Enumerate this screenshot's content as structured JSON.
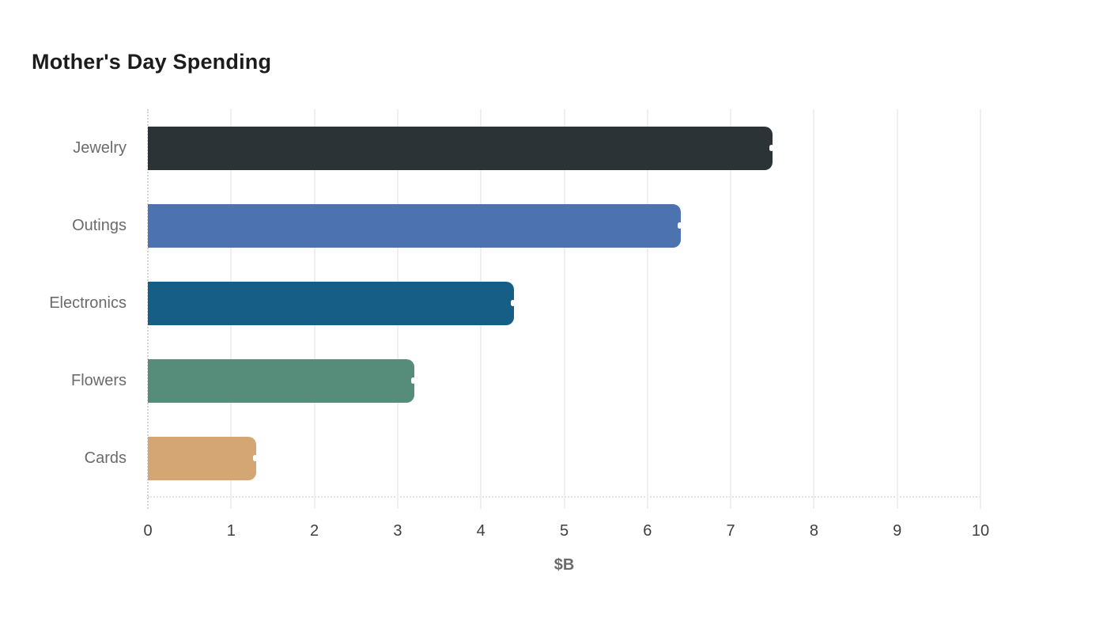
{
  "chart_data": {
    "type": "bar",
    "orientation": "horizontal",
    "title": "Mother's Day Spending",
    "categories": [
      "Jewelry",
      "Outings",
      "Electronics",
      "Flowers",
      "Cards"
    ],
    "values": [
      7.5,
      6.4,
      4.4,
      3.2,
      1.3
    ],
    "bar_colors": [
      "#2b3337",
      "#4c72b0",
      "#165e86",
      "#558c7a",
      "#d3a674"
    ],
    "xlabel": "$B",
    "xlim": [
      0,
      10
    ],
    "xticks": [
      0,
      1,
      2,
      3,
      4,
      5,
      6,
      7,
      8,
      9,
      10
    ],
    "grid": "vertical-gridlines-on",
    "legend": "none",
    "ylabel": ""
  }
}
